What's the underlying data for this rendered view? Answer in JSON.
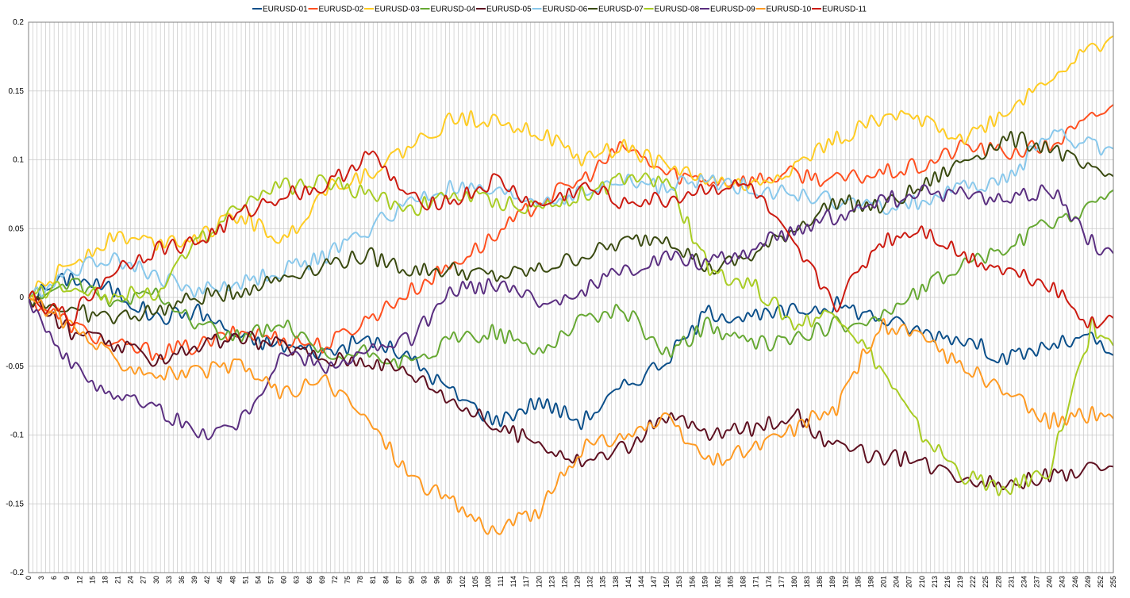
{
  "chart_data": {
    "type": "line",
    "ylim": [
      -0.2,
      0.2
    ],
    "yticks": [
      0.2,
      0.15,
      0.1,
      0.05,
      0,
      -0.05,
      -0.1,
      -0.15,
      -0.2
    ],
    "ytick_labels": [
      "0.2",
      "0.15",
      "0.1",
      "0.05",
      "0",
      "-0.05",
      "-0.1",
      "-0.15",
      "-0.2"
    ],
    "xlim": [
      0,
      255
    ],
    "xtick_step": 3,
    "grid": true,
    "legend_position": "top",
    "x_anchor": [
      0,
      10,
      20,
      30,
      40,
      50,
      60,
      70,
      80,
      90,
      100,
      110,
      120,
      130,
      140,
      150,
      160,
      170,
      180,
      190,
      200,
      210,
      220,
      230,
      240,
      250,
      255
    ],
    "series": [
      {
        "name": "EURUSD-01",
        "color": "#0b4f8a",
        "values": [
          0,
          0.015,
          0.005,
          -0.015,
          -0.01,
          -0.03,
          -0.035,
          -0.04,
          -0.03,
          -0.045,
          -0.07,
          -0.09,
          -0.075,
          -0.09,
          -0.065,
          -0.045,
          -0.01,
          -0.015,
          -0.01,
          -0.005,
          -0.015,
          -0.025,
          -0.03,
          -0.045,
          -0.035,
          -0.03,
          -0.042
        ]
      },
      {
        "name": "EURUSD-02",
        "color": "#ff4f1f",
        "values": [
          0,
          -0.02,
          -0.035,
          -0.04,
          -0.035,
          -0.025,
          -0.03,
          -0.035,
          -0.015,
          0.005,
          0.025,
          0.045,
          0.07,
          0.085,
          0.11,
          0.09,
          0.085,
          0.085,
          0.09,
          0.085,
          0.09,
          0.095,
          0.11,
          0.105,
          0.11,
          0.13,
          0.14
        ]
      },
      {
        "name": "EURUSD-03",
        "color": "#ffcc22",
        "values": [
          0,
          0.025,
          0.045,
          0.04,
          0.045,
          0.06,
          0.04,
          0.08,
          0.09,
          0.11,
          0.13,
          0.13,
          0.12,
          0.1,
          0.11,
          0.095,
          0.085,
          0.08,
          0.095,
          0.115,
          0.13,
          0.13,
          0.115,
          0.135,
          0.16,
          0.18,
          0.19
        ]
      },
      {
        "name": "EURUSD-04",
        "color": "#66a832",
        "values": [
          0,
          0.01,
          -0.005,
          0.005,
          -0.02,
          -0.03,
          -0.02,
          -0.045,
          -0.04,
          -0.05,
          -0.03,
          -0.025,
          -0.04,
          -0.015,
          -0.01,
          -0.04,
          -0.02,
          -0.035,
          -0.03,
          -0.02,
          -0.015,
          0.005,
          0.025,
          0.035,
          0.055,
          0.065,
          0.078
        ]
      },
      {
        "name": "EURUSD-05",
        "color": "#5e1020",
        "values": [
          0,
          -0.025,
          -0.035,
          -0.045,
          -0.035,
          -0.03,
          -0.035,
          -0.045,
          -0.045,
          -0.055,
          -0.075,
          -0.095,
          -0.105,
          -0.12,
          -0.11,
          -0.085,
          -0.1,
          -0.095,
          -0.085,
          -0.11,
          -0.115,
          -0.12,
          -0.13,
          -0.135,
          -0.13,
          -0.125,
          -0.123
        ]
      },
      {
        "name": "EURUSD-06",
        "color": "#88c8ec",
        "values": [
          0,
          0.02,
          0.03,
          0.015,
          0.005,
          0.01,
          0.02,
          0.03,
          0.05,
          0.07,
          0.08,
          0.075,
          0.07,
          0.075,
          0.085,
          0.08,
          0.085,
          0.08,
          0.075,
          0.07,
          0.065,
          0.07,
          0.08,
          0.085,
          0.12,
          0.11,
          0.108
        ]
      },
      {
        "name": "EURUSD-07",
        "color": "#3a4a10",
        "values": [
          0,
          -0.01,
          -0.015,
          -0.01,
          0,
          0.005,
          0.015,
          0.025,
          0.03,
          0.02,
          0.02,
          0.015,
          0.02,
          0.03,
          0.04,
          0.045,
          0.02,
          0.03,
          0.05,
          0.07,
          0.065,
          0.08,
          0.1,
          0.115,
          0.11,
          0.09,
          0.088
        ]
      },
      {
        "name": "EURUSD-08",
        "color": "#a8cc22",
        "values": [
          0,
          0.01,
          0,
          0.005,
          0.04,
          0.07,
          0.08,
          0.085,
          0.075,
          0.065,
          0.075,
          0.07,
          0.065,
          0.075,
          0.085,
          0.085,
          0.02,
          0.01,
          -0.02,
          -0.01,
          -0.05,
          -0.1,
          -0.13,
          -0.14,
          -0.125,
          -0.02,
          -0.035
        ]
      },
      {
        "name": "EURUSD-09",
        "color": "#5a2e80",
        "values": [
          0,
          -0.05,
          -0.07,
          -0.08,
          -0.1,
          -0.09,
          -0.04,
          -0.05,
          -0.04,
          -0.03,
          0.005,
          0.01,
          -0.005,
          0.005,
          0.02,
          0.03,
          0.025,
          0.035,
          0.05,
          0.06,
          0.07,
          0.075,
          0.075,
          0.07,
          0.08,
          0.04,
          0.032
        ]
      },
      {
        "name": "EURUSD-10",
        "color": "#ff9a22",
        "values": [
          0,
          -0.02,
          -0.045,
          -0.055,
          -0.055,
          -0.05,
          -0.07,
          -0.06,
          -0.09,
          -0.13,
          -0.15,
          -0.17,
          -0.155,
          -0.11,
          -0.1,
          -0.09,
          -0.12,
          -0.11,
          -0.095,
          -0.08,
          -0.02,
          -0.03,
          -0.05,
          -0.07,
          -0.09,
          -0.085,
          -0.088
        ]
      },
      {
        "name": "EURUSD-11",
        "color": "#cc1a10",
        "values": [
          0,
          -0.015,
          0.02,
          0.035,
          0.04,
          0.06,
          0.075,
          0.08,
          0.105,
          0.07,
          0.07,
          0.085,
          0.065,
          0.08,
          0.07,
          0.07,
          0.08,
          0.08,
          0.035,
          -0.005,
          0.04,
          0.05,
          0.03,
          0.02,
          0.01,
          -0.02,
          -0.015
        ]
      }
    ]
  }
}
